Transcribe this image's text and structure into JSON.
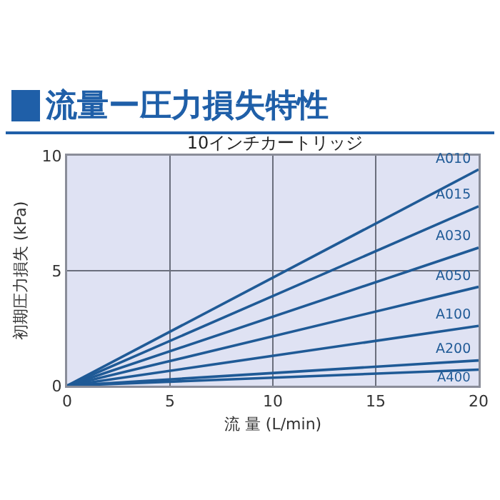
{
  "chart_data": {
    "type": "line",
    "title": "流量ー圧力損失特性",
    "subtitle": "10インチカートリッジ",
    "xlabel": "流 量 (L/min)",
    "ylabel": "初期圧力損失 (kPa)",
    "x": [
      0,
      20
    ],
    "xlim": [
      0,
      20
    ],
    "xticks": [
      0,
      5,
      10,
      15,
      20
    ],
    "ylim": [
      0,
      10
    ],
    "yticks": [
      0,
      5,
      10
    ],
    "grid": true,
    "legend": false,
    "marker": "none",
    "line_style": "solid",
    "series": [
      {
        "name": "A010",
        "color": "#1f5a96",
        "values": [
          0,
          9.4
        ]
      },
      {
        "name": "A015",
        "color": "#1f5a96",
        "values": [
          0,
          7.8
        ]
      },
      {
        "name": "A030",
        "color": "#1f5a96",
        "values": [
          0,
          6.0
        ]
      },
      {
        "name": "A050",
        "color": "#1f5a96",
        "values": [
          0,
          4.3
        ]
      },
      {
        "name": "A100",
        "color": "#1f5a96",
        "values": [
          0,
          2.6
        ]
      },
      {
        "name": "A200",
        "color": "#1f5a96",
        "values": [
          0,
          1.1
        ]
      },
      {
        "name": "A400",
        "color": "#1f5a96",
        "values": [
          0,
          0.7
        ]
      }
    ]
  }
}
